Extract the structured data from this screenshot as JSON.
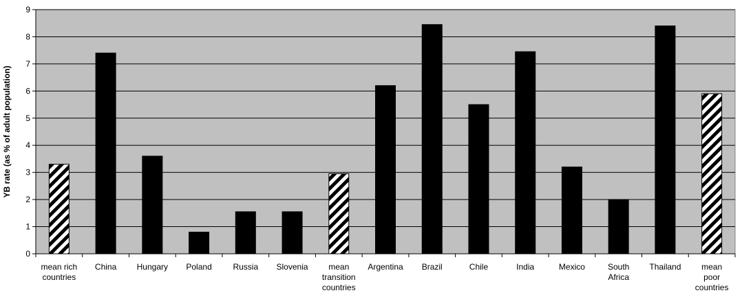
{
  "chart_data": {
    "type": "bar",
    "title": "",
    "xlabel": "",
    "ylabel": "YB rate (as % of adult population)",
    "ylim": [
      0,
      9
    ],
    "yticks": [
      "0",
      "1",
      "2",
      "3",
      "4",
      "5",
      "6",
      "7",
      "8",
      "9"
    ],
    "grid": true,
    "background_color": "#c0c0c0",
    "solid_color": "#000000",
    "hatch_pattern": "diagonal-stripes",
    "categories": [
      {
        "label": [
          "mean rich",
          "countries"
        ],
        "value": 3.3,
        "style": "hatched"
      },
      {
        "label": [
          "China"
        ],
        "value": 7.4,
        "style": "solid"
      },
      {
        "label": [
          "Hungary"
        ],
        "value": 3.6,
        "style": "solid"
      },
      {
        "label": [
          "Poland"
        ],
        "value": 0.8,
        "style": "solid"
      },
      {
        "label": [
          "Russia"
        ],
        "value": 1.55,
        "style": "solid"
      },
      {
        "label": [
          "Slovenia"
        ],
        "value": 1.55,
        "style": "solid"
      },
      {
        "label": [
          "mean",
          "transition",
          "countries"
        ],
        "value": 2.95,
        "style": "hatched"
      },
      {
        "label": [
          "Argentina"
        ],
        "value": 6.2,
        "style": "solid"
      },
      {
        "label": [
          "Brazil"
        ],
        "value": 8.45,
        "style": "solid"
      },
      {
        "label": [
          "Chile"
        ],
        "value": 5.5,
        "style": "solid"
      },
      {
        "label": [
          "India"
        ],
        "value": 7.45,
        "style": "solid"
      },
      {
        "label": [
          "Mexico"
        ],
        "value": 3.2,
        "style": "solid"
      },
      {
        "label": [
          "South",
          "Africa"
        ],
        "value": 2.0,
        "style": "solid"
      },
      {
        "label": [
          "Thailand"
        ],
        "value": 8.4,
        "style": "solid"
      },
      {
        "label": [
          "mean",
          "poor",
          "countries"
        ],
        "value": 5.9,
        "style": "hatched"
      }
    ]
  }
}
